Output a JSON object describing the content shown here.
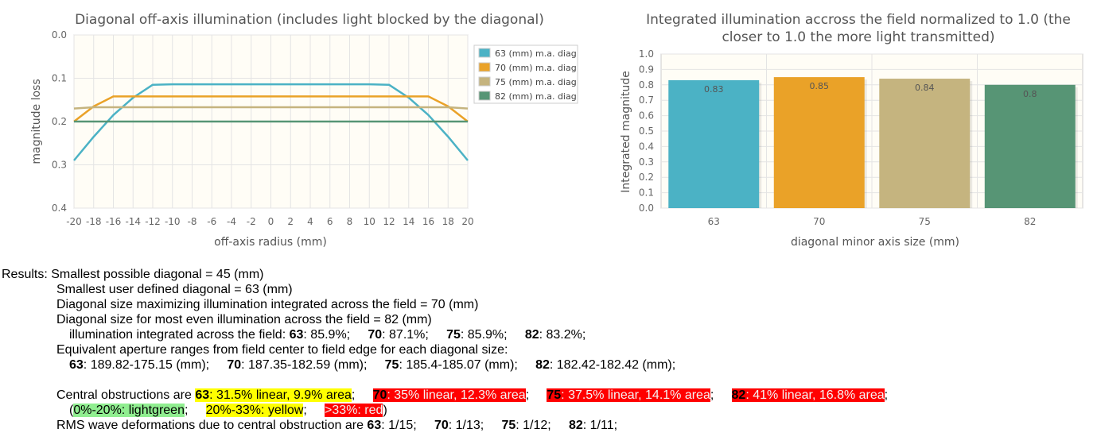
{
  "chart_data": [
    {
      "type": "line",
      "title": "Diagonal off-axis illumination (includes light blocked by the diagonal)",
      "xlabel": "off-axis radius (mm)",
      "ylabel": "magnitude loss",
      "xlim": [
        -20,
        20
      ],
      "ylim": [
        0.4,
        0.0
      ],
      "y_reversed": true,
      "grid": true,
      "legend": "right",
      "x_ticks": [
        "-20",
        "-18",
        "-16",
        "-14",
        "-12",
        "-10",
        "-8",
        "-6",
        "-4",
        "-2",
        "0",
        "2",
        "4",
        "6",
        "8",
        "10",
        "12",
        "14",
        "16",
        "18",
        "20"
      ],
      "y_ticks": [
        "0.0",
        "0.1",
        "0.2",
        "0.3",
        "0.4"
      ],
      "series": [
        {
          "name": "63 (mm) m.a. diag",
          "color": "#4bb2c5",
          "points": [
            [
              -20,
              0.29
            ],
            [
              -18,
              0.235
            ],
            [
              -16,
              0.185
            ],
            [
              -14,
              0.145
            ],
            [
              -12,
              0.115
            ],
            [
              -10,
              0.114
            ],
            [
              0,
              0.114
            ],
            [
              10,
              0.114
            ],
            [
              12,
              0.115
            ],
            [
              14,
              0.145
            ],
            [
              16,
              0.185
            ],
            [
              18,
              0.235
            ],
            [
              20,
              0.29
            ]
          ]
        },
        {
          "name": "70 (mm) m.a. diag",
          "color": "#eaa228",
          "points": [
            [
              -20,
              0.2
            ],
            [
              -18,
              0.165
            ],
            [
              -16,
              0.142
            ],
            [
              -14,
              0.142
            ],
            [
              0,
              0.142
            ],
            [
              14,
              0.142
            ],
            [
              16,
              0.142
            ],
            [
              18,
              0.165
            ],
            [
              20,
              0.2
            ]
          ]
        },
        {
          "name": "75 (mm) m.a. diag",
          "color": "#c5b47f",
          "points": [
            [
              -20,
              0.17
            ],
            [
              -18,
              0.167
            ],
            [
              -16,
              0.167
            ],
            [
              0,
              0.167
            ],
            [
              16,
              0.167
            ],
            [
              18,
              0.167
            ],
            [
              20,
              0.17
            ]
          ]
        },
        {
          "name": "82 (mm) m.a. diag",
          "color": "#579575",
          "points": [
            [
              -20,
              0.2
            ],
            [
              0,
              0.2
            ],
            [
              20,
              0.2
            ]
          ]
        }
      ]
    },
    {
      "type": "bar",
      "title": "Integrated illumination accross the field normalized to 1.0 (the closer to 1.0 the more light transmitted)",
      "title_lines": [
        "Integrated illumination accross the field normalized to 1.0 (the",
        "closer to 1.0 the more light transmitted)"
      ],
      "xlabel": "diagonal minor axis size (mm)",
      "ylabel": "Integrated magnitude",
      "ylim": [
        0,
        1.0
      ],
      "grid": true,
      "y_ticks": [
        "0.0",
        "0.1",
        "0.2",
        "0.3",
        "0.4",
        "0.5",
        "0.6",
        "0.7",
        "0.8",
        "0.9",
        "1.0"
      ],
      "categories": [
        "63",
        "70",
        "75",
        "82"
      ],
      "values": [
        0.83,
        0.85,
        0.84,
        0.8
      ],
      "labels": [
        "0.83",
        "0.85",
        "0.84",
        "0.8"
      ],
      "colors": [
        "#4bb2c5",
        "#eaa228",
        "#c5b47f",
        "#579575"
      ]
    }
  ],
  "results": {
    "prefix": "Results:",
    "line1": "Smallest possible diagonal = 45 (mm)",
    "line2": "Smallest user defined diagonal = 63 (mm)",
    "line3": "Diagonal size maximizing illumination integrated across the field = 70 (mm)",
    "line4": "Diagonal size for most even illumination across the field = 82 (mm)",
    "line5_prefix": "illumination integrated across the field:",
    "integrated": [
      {
        "size": "63",
        "value": ": 85.9%;"
      },
      {
        "size": "70",
        "value": ": 87.1%;"
      },
      {
        "size": "75",
        "value": ": 85.9%;"
      },
      {
        "size": "82",
        "value": ": 83.2%;"
      }
    ],
    "line6": "Equivalent aperture ranges from field center to field edge for each diagonal size:",
    "apertures": [
      {
        "size": "63",
        "value": ": 189.82-175.15 (mm);"
      },
      {
        "size": "70",
        "value": ": 187.35-182.59 (mm);"
      },
      {
        "size": "75",
        "value": ": 185.4-185.07 (mm);"
      },
      {
        "size": "82",
        "value": ": 182.42-182.42 (mm);"
      }
    ],
    "obstruction_prefix": "Central obstructions are",
    "obstructions": [
      {
        "size": "63",
        "value": ": 31.5% linear, 9.9% area",
        "level": "yellow"
      },
      {
        "size": "70",
        "value": ": 35% linear, 12.3% area",
        "level": "red"
      },
      {
        "size": "75",
        "value": ": 37.5% linear, 14.1% area",
        "level": "red"
      },
      {
        "size": "82",
        "value": ": 41% linear, 16.8% area",
        "level": "red"
      }
    ],
    "legend_green": "0%-20%: lightgreen",
    "legend_yellow": "20%-33%: yellow",
    "legend_red": ">33%: red",
    "rms_prefix": "RMS wave deformations due to central obstruction are",
    "rms": [
      {
        "size": "63",
        "value": ": 1/15;"
      },
      {
        "size": "70",
        "value": ": 1/13;"
      },
      {
        "size": "75",
        "value": ": 1/12;"
      },
      {
        "size": "82",
        "value": ": 1/11;"
      }
    ]
  }
}
